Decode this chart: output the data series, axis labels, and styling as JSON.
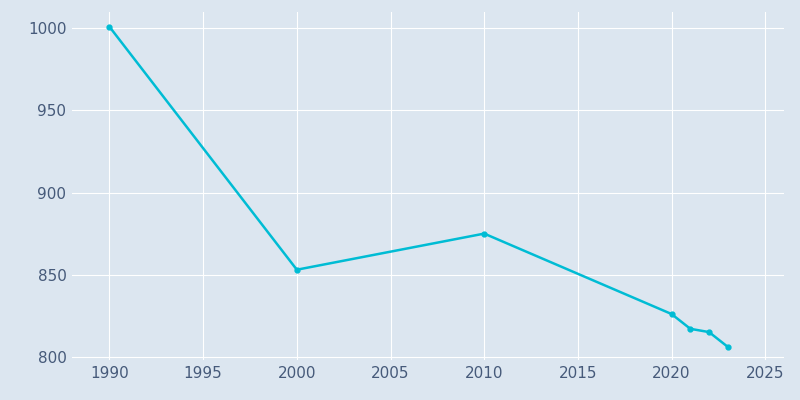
{
  "years": [
    1990,
    2000,
    2010,
    2020,
    2021,
    2022,
    2023
  ],
  "population": [
    1001,
    853,
    875,
    826,
    817,
    815,
    806
  ],
  "line_color": "#00BCD4",
  "marker_color": "#00BCD4",
  "bg_color": "#dce6f0",
  "plot_bg_color": "#dce6f0",
  "grid_color": "#ffffff",
  "xlim": [
    1988,
    2026
  ],
  "ylim": [
    798,
    1010
  ],
  "xticks": [
    1990,
    1995,
    2000,
    2005,
    2010,
    2015,
    2020,
    2025
  ],
  "yticks": [
    800,
    850,
    900,
    950,
    1000
  ],
  "tick_color": "#465a7a",
  "tick_fontsize": 11
}
